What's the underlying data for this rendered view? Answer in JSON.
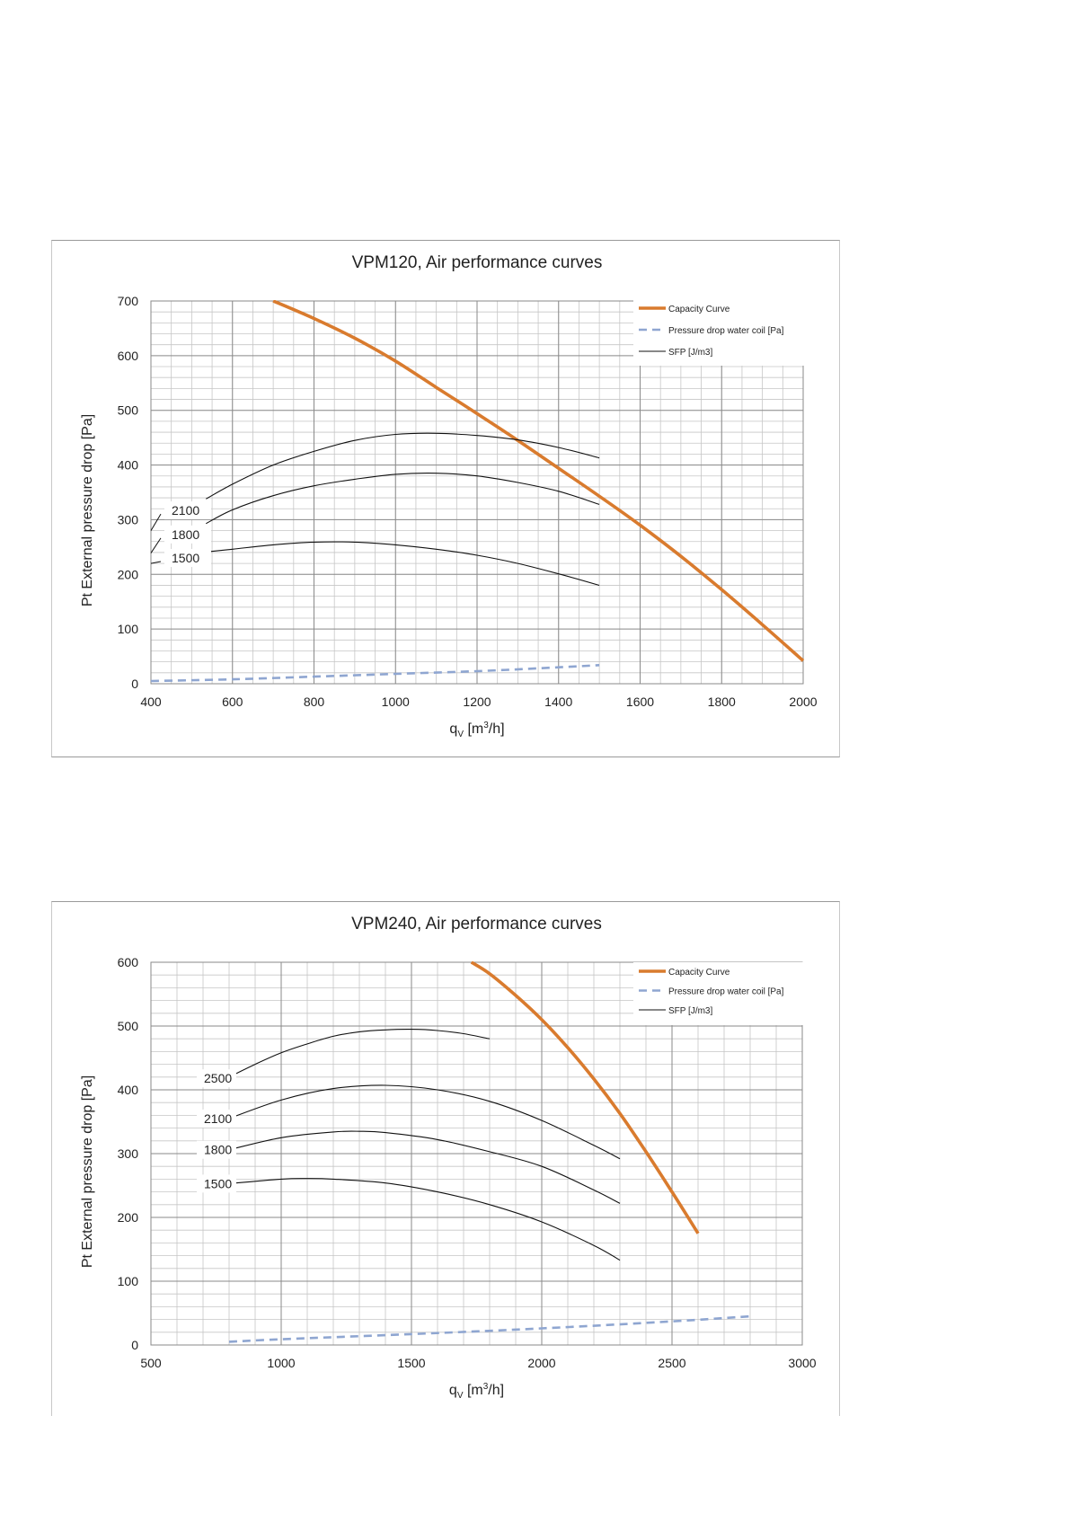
{
  "chart_data": [
    {
      "type": "line",
      "title": "VPM120, Air performance curves",
      "xlabel": "qV [m3/h]",
      "xlabel_main": "q",
      "xlabel_sub": "V",
      "xlabel_pre": " [m",
      "xlabel_sup": "3",
      "xlabel_post": "/h]",
      "ylabel": "Pt External pressure drop [Pa]",
      "xlim": [
        400,
        2000
      ],
      "ylim": [
        0,
        700
      ],
      "x_ticks": [
        400,
        600,
        800,
        1000,
        1200,
        1400,
        1600,
        1800,
        2000
      ],
      "y_ticks": [
        0,
        100,
        200,
        300,
        400,
        500,
        600,
        700
      ],
      "x_minor_step": 50,
      "y_minor_step": 20,
      "grid": true,
      "legend_position": "top-right",
      "legend": [
        "Capacity Curve",
        "Pressure drop water coil [Pa]",
        "SFP [J/m3]"
      ],
      "colors": {
        "capacity": "#d97b2e",
        "water": "#8fa6d1",
        "sfp": "#111111"
      },
      "series": [
        {
          "name": "Capacity Curve",
          "role": "capacity",
          "x": [
            700,
            800,
            900,
            1000,
            1100,
            1200,
            1300,
            1400,
            1500,
            1600,
            1700,
            1800,
            1900,
            2000
          ],
          "y": [
            700,
            668,
            632,
            590,
            542,
            494,
            445,
            394,
            343,
            290,
            233,
            172,
            108,
            42
          ]
        },
        {
          "name": "Pressure drop water coil [Pa]",
          "role": "water",
          "x": [
            400,
            600,
            800,
            1000,
            1200,
            1400,
            1500
          ],
          "y": [
            5,
            8,
            13,
            18,
            23,
            30,
            34
          ]
        },
        {
          "name": "SFP 2100",
          "role": "sfp",
          "x": [
            535,
            600,
            700,
            800,
            900,
            1000,
            1100,
            1200,
            1300,
            1400,
            1500
          ],
          "y": [
            338,
            365,
            400,
            425,
            445,
            456,
            458,
            454,
            446,
            432,
            413
          ]
        },
        {
          "name": "SFP 1800",
          "role": "sfp",
          "x": [
            535,
            600,
            700,
            800,
            900,
            1000,
            1100,
            1200,
            1300,
            1400,
            1500
          ],
          "y": [
            293,
            318,
            344,
            362,
            374,
            383,
            385,
            380,
            368,
            352,
            328
          ]
        },
        {
          "name": "SFP 1500",
          "role": "sfp",
          "x": [
            535,
            600,
            700,
            800,
            900,
            1000,
            1100,
            1200,
            1300,
            1400,
            1500
          ],
          "y": [
            241,
            246,
            254,
            259,
            259,
            254,
            246,
            235,
            220,
            201,
            180
          ]
        }
      ],
      "curve_labels": [
        {
          "text": "2100",
          "y": 317,
          "lead_y": 280
        },
        {
          "text": "1800",
          "y": 273,
          "lead_y": 239
        },
        {
          "text": "1500",
          "y": 230,
          "lead_y": 220
        }
      ]
    },
    {
      "type": "line",
      "title": "VPM240, Air performance curves",
      "xlabel": "qV [m3/h]",
      "xlabel_main": "q",
      "xlabel_sub": "V",
      "xlabel_pre": " [m",
      "xlabel_sup": "3",
      "xlabel_post": "/h]",
      "ylabel": "Pt External pressure drop [Pa]",
      "xlim": [
        500,
        3000
      ],
      "ylim": [
        0,
        600
      ],
      "x_ticks": [
        500,
        1000,
        1500,
        2000,
        2500,
        3000
      ],
      "y_ticks": [
        0,
        100,
        200,
        300,
        400,
        500,
        600
      ],
      "x_minor_step": 100,
      "y_minor_step": 20,
      "grid": true,
      "legend_position": "top-right",
      "legend": [
        "Capacity Curve",
        "Pressure drop water coil [Pa]",
        "SFP [J/m3]"
      ],
      "colors": {
        "capacity": "#d97b2e",
        "water": "#8fa6d1",
        "sfp": "#111111"
      },
      "series": [
        {
          "name": "Capacity Curve",
          "role": "capacity",
          "x": [
            1730,
            1800,
            1900,
            2000,
            2100,
            2200,
            2300,
            2400,
            2500,
            2600
          ],
          "y": [
            600,
            582,
            548,
            510,
            466,
            417,
            363,
            303,
            240,
            175
          ]
        },
        {
          "name": "Pressure drop water coil [Pa]",
          "role": "water",
          "x": [
            800,
            1000,
            1500,
            2000,
            2500,
            2800
          ],
          "y": [
            5,
            9,
            17,
            26,
            37,
            45
          ]
        },
        {
          "name": "SFP 2500",
          "role": "sfp",
          "x": [
            800,
            900,
            1000,
            1100,
            1200,
            1300,
            1400,
            1500,
            1600,
            1700,
            1800
          ],
          "y": [
            420,
            440,
            458,
            472,
            484,
            491,
            494,
            495,
            493,
            488,
            480
          ]
        },
        {
          "name": "SFP 2100",
          "role": "sfp",
          "x": [
            800,
            1000,
            1200,
            1400,
            1600,
            1800,
            2000,
            2200,
            2300
          ],
          "y": [
            355,
            384,
            402,
            407,
            400,
            382,
            352,
            313,
            292
          ]
        },
        {
          "name": "SFP 1800",
          "role": "sfp",
          "x": [
            800,
            1000,
            1200,
            1300,
            1400,
            1600,
            1800,
            2000,
            2200,
            2300
          ],
          "y": [
            306,
            325,
            334,
            335,
            333,
            322,
            303,
            280,
            243,
            222
          ]
        },
        {
          "name": "SFP 1500",
          "role": "sfp",
          "x": [
            800,
            1000,
            1100,
            1200,
            1400,
            1600,
            1800,
            2000,
            2200,
            2300
          ],
          "y": [
            253,
            260,
            261,
            260,
            254,
            240,
            220,
            193,
            156,
            133
          ]
        }
      ],
      "curve_labels": [
        {
          "text": "2500",
          "y": 418
        },
        {
          "text": "2100",
          "y": 355
        },
        {
          "text": "1800",
          "y": 306
        },
        {
          "text": "1500",
          "y": 253
        }
      ]
    }
  ]
}
